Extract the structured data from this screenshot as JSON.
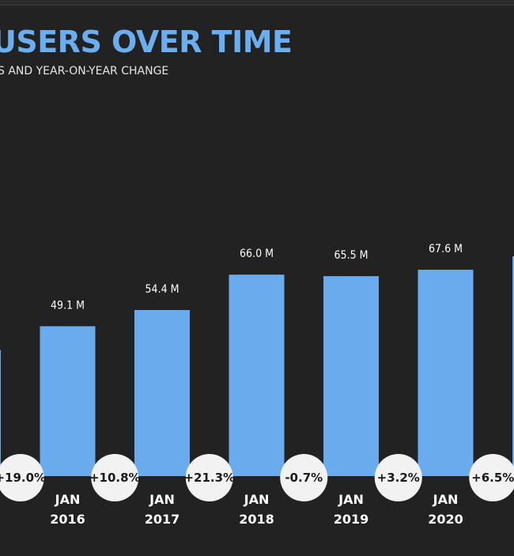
{
  "chart_data": {
    "type": "bar",
    "title": "USERS OVER TIME",
    "subtitle": "S AND YEAR-ON-YEAR CHANGE",
    "unit": "M",
    "xlabel": "",
    "ylabel": "",
    "categories": [
      {
        "month": "",
        "year": ""
      },
      {
        "month": "JAN",
        "year": "2016"
      },
      {
        "month": "JAN",
        "year": "2017"
      },
      {
        "month": "JAN",
        "year": "2018"
      },
      {
        "month": "JAN",
        "year": "2019"
      },
      {
        "month": "JAN",
        "year": "2020"
      },
      {
        "month": "",
        "year": ""
      }
    ],
    "values": [
      41.3,
      49.1,
      54.4,
      66.0,
      65.5,
      67.6,
      72.0
    ],
    "value_labels": [
      "",
      "49.1 M",
      "54.4 M",
      "66.0 M",
      "65.5 M",
      "67.6 M",
      ""
    ],
    "changes": [
      "+19.0%",
      "+10.8%",
      "+21.3%",
      "-0.7%",
      "+3.2%",
      "+6.5%"
    ],
    "ylim": [
      0,
      80
    ],
    "colors": {
      "bar": "#6aabee",
      "background": "#222222",
      "title": "#6aaef0"
    }
  }
}
